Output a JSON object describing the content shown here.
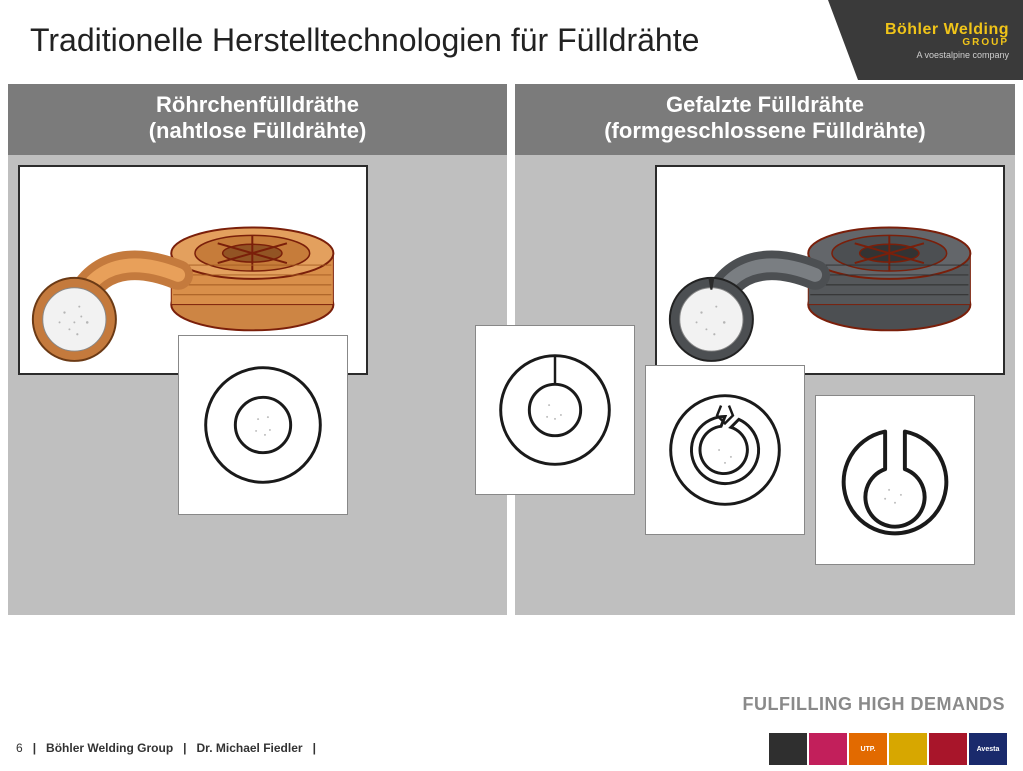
{
  "title": "Traditionelle Herstelltechnologien für Fülldrähte",
  "logo": {
    "brand": "Böhler Welding",
    "group": "GROUP",
    "tagline": "A voestalpine company"
  },
  "columns": {
    "left": {
      "heading_line1": "Röhrchenfülldräthe",
      "heading_line2": "(nahtlose Fülldrähte)",
      "wire_color": "#c47a3d",
      "wire_highlight": "#e8a05a",
      "spool_rim": "#8a2f17",
      "core_fill": "#f2f2f2",
      "diagram": {
        "type": "concentric-ring",
        "outer_stroke": "#1a1a1a",
        "inner_stroke": "#1a1a1a"
      }
    },
    "right": {
      "heading_line1": "Gefalzte Fülldrähte",
      "heading_line2": "(formgeschlossene Fülldrähte)",
      "wire_color": "#4c4f52",
      "wire_highlight": "#7a7e82",
      "spool_rim": "#8a2f17",
      "core_fill": "#f2f2f2",
      "diagrams": [
        "butt-seam",
        "overlap-seam",
        "folded-seam"
      ],
      "stroke": "#1a1a1a"
    }
  },
  "footer": {
    "tagline": "FULFILLING HIGH DEMANDS",
    "page": "6",
    "org": "Böhler Welding Group",
    "author": "Dr. Michael Fiedler"
  },
  "brand_chips": [
    {
      "label": "",
      "bg": "#2f2f2f"
    },
    {
      "label": "",
      "bg": "#c21f5b"
    },
    {
      "label": "UTP.",
      "bg": "#e26a00"
    },
    {
      "label": "",
      "bg": "#d7a700"
    },
    {
      "label": "",
      "bg": "#a8152a"
    },
    {
      "label": "Avesta",
      "bg": "#1a2a6c"
    }
  ]
}
